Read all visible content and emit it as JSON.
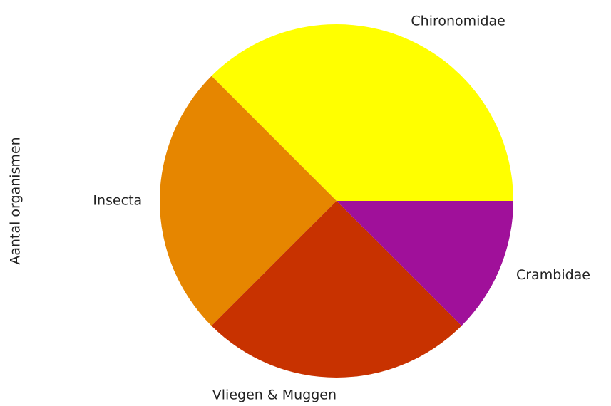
{
  "chart_data": {
    "type": "pie",
    "ylabel": "Aantal organismen",
    "categories": [
      "Chironomidae",
      "Insecta",
      "Vliegen & Muggen",
      "Crambidae"
    ],
    "values": [
      3,
      2,
      2,
      1
    ],
    "colors": [
      "#ffff00",
      "#e68600",
      "#c83200",
      "#a0109a"
    ]
  }
}
